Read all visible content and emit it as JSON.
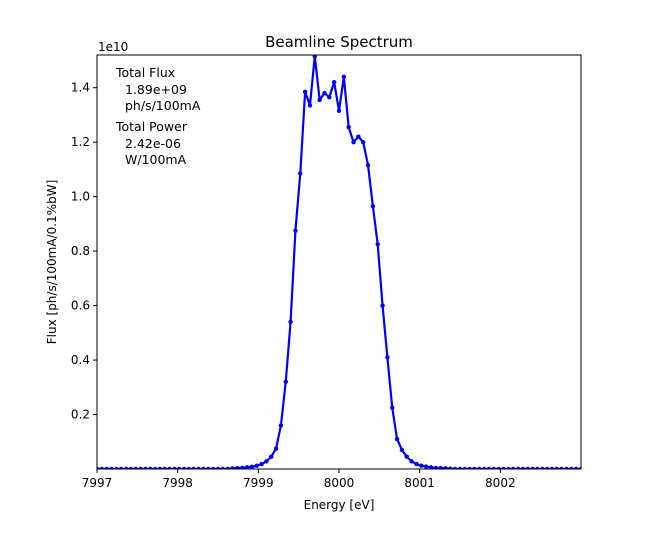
{
  "chart_data": {
    "type": "line",
    "title": "Beamline Spectrum",
    "xlabel": "Energy [eV]",
    "ylabel": "Flux [ph/s/100mA/0.1%bW]",
    "y_offset_label": "1e10",
    "xlim": [
      7997.0,
      8003.0
    ],
    "ylim": [
      0.0,
      1.52
    ],
    "x_ticks": [
      7997,
      7998,
      7999,
      8000,
      8001,
      8002
    ],
    "y_ticks": [
      0.2,
      0.4,
      0.6,
      0.8,
      1.0,
      1.2,
      1.4
    ],
    "grid": false,
    "annotations": {
      "flux_label": "Total Flux",
      "flux_value": "1.89e+09",
      "flux_unit": "ph/s/100mA",
      "power_label": "Total Power",
      "power_value": "2.42e-06",
      "power_unit": "W/100mA"
    },
    "series": [
      {
        "color": "#0000ff",
        "x": [
          7997.0,
          7997.06,
          7997.12,
          7997.18,
          7997.24,
          7997.3,
          7997.36,
          7997.42,
          7997.48,
          7997.54,
          7997.6,
          7997.66,
          7997.72,
          7997.78,
          7997.84,
          7997.9,
          7997.96,
          7998.02,
          7998.08,
          7998.14,
          7998.2,
          7998.26,
          7998.32,
          7998.38,
          7998.44,
          7998.5,
          7998.56,
          7998.62,
          7998.68,
          7998.74,
          7998.8,
          7998.86,
          7998.92,
          7998.98,
          7999.04,
          7999.1,
          7999.16,
          7999.22,
          7999.28,
          7999.34,
          7999.4,
          7999.46,
          7999.52,
          7999.58,
          7999.64,
          7999.7,
          7999.76,
          7999.82,
          7999.88,
          7999.94,
          8000.0,
          8000.06,
          8000.12,
          8000.18,
          8000.24,
          8000.3,
          8000.36,
          8000.42,
          8000.48,
          8000.54,
          8000.6,
          8000.66,
          8000.72,
          8000.78,
          8000.84,
          8000.9,
          8000.96,
          8001.02,
          8001.08,
          8001.14,
          8001.2,
          8001.26,
          8001.32,
          8001.38,
          8001.44,
          8001.5,
          8001.56,
          8001.62,
          8001.68,
          8001.74,
          8001.8,
          8001.86,
          8001.92,
          8001.98,
          8002.04,
          8002.1,
          8002.16,
          8002.22,
          8002.28,
          8002.34,
          8002.4,
          8002.46,
          8002.52,
          8002.58,
          8002.64,
          8002.7,
          8002.76,
          8002.82,
          8002.88,
          8002.94,
          8003.0
        ],
        "y": [
          0.0,
          0.0,
          0.0,
          0.0,
          0.0,
          0.0,
          0.0,
          0.0,
          0.0,
          0.0,
          0.0,
          0.0,
          0.0,
          0.0,
          0.0,
          0.0,
          0.0,
          0.0,
          0.0,
          0.0,
          0.0,
          0.0,
          0.0,
          0.0,
          0.0,
          0.0,
          0.0,
          0.0,
          0.002,
          0.003,
          0.004,
          0.006,
          0.008,
          0.012,
          0.018,
          0.028,
          0.045,
          0.075,
          0.16,
          0.32,
          0.54,
          0.875,
          1.085,
          1.385,
          1.335,
          1.515,
          1.355,
          1.38,
          1.365,
          1.42,
          1.315,
          1.44,
          1.255,
          1.2,
          1.22,
          1.2,
          1.115,
          0.965,
          0.825,
          0.6,
          0.41,
          0.225,
          0.11,
          0.07,
          0.045,
          0.028,
          0.018,
          0.012,
          0.009,
          0.006,
          0.004,
          0.003,
          0.002,
          0.001,
          0.0,
          0.0,
          0.0,
          0.0,
          0.0,
          0.0,
          0.0,
          0.0,
          0.0,
          0.0,
          0.0,
          0.0,
          0.0,
          0.0,
          0.0,
          0.0,
          0.0,
          0.0,
          0.0,
          0.0,
          0.0,
          0.0,
          0.0,
          0.0,
          0.0,
          0.0,
          0.0
        ]
      }
    ]
  }
}
